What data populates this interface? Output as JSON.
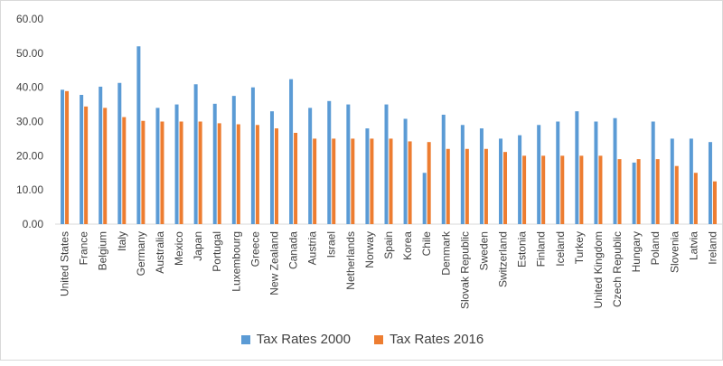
{
  "chart_data": {
    "type": "bar",
    "title": "",
    "xlabel": "",
    "ylabel": "",
    "ylim": [
      0,
      60
    ],
    "yticks": [
      "0.00",
      "10.00",
      "20.00",
      "30.00",
      "40.00",
      "50.00",
      "60.00"
    ],
    "grid": false,
    "legend_position": "bottom",
    "categories": [
      "United States",
      "France",
      "Belgium",
      "Italy",
      "Germany",
      "Australia",
      "Mexico",
      "Japan",
      "Portugal",
      "Luxembourg",
      "Greece",
      "New Zealand",
      "Canada",
      "Austria",
      "Israel",
      "Netherlands",
      "Norway",
      "Spain",
      "Korea",
      "Chile",
      "Denmark",
      "Slovak Republic",
      "Sweden",
      "Switzerland",
      "Estonia",
      "Finland",
      "Iceland",
      "Turkey",
      "United Kingdom",
      "Czech Republic",
      "Hungary",
      "Poland",
      "Slovenia",
      "Latvia",
      "Ireland"
    ],
    "series": [
      {
        "name": "Tax Rates 2000",
        "color": "#5b9bd5",
        "values": [
          39.3,
          37.8,
          40.2,
          41.3,
          52.0,
          34.0,
          35.0,
          40.9,
          35.2,
          37.5,
          40.0,
          33.0,
          42.4,
          34.0,
          36.0,
          35.0,
          28.0,
          35.0,
          30.8,
          15.0,
          32.0,
          29.0,
          28.0,
          25.0,
          26.0,
          29.0,
          30.0,
          33.0,
          30.0,
          31.0,
          18.0,
          30.0,
          25.0,
          25.0,
          24.0
        ]
      },
      {
        "name": "Tax Rates 2016",
        "color": "#ed7d31",
        "values": [
          38.9,
          34.4,
          34.0,
          31.3,
          30.2,
          30.0,
          30.0,
          30.0,
          29.5,
          29.2,
          29.0,
          28.0,
          26.7,
          25.0,
          25.0,
          25.0,
          25.0,
          25.0,
          24.2,
          24.0,
          22.0,
          22.0,
          22.0,
          21.1,
          20.0,
          20.0,
          20.0,
          20.0,
          20.0,
          19.0,
          19.0,
          19.0,
          17.0,
          15.0,
          12.5
        ]
      }
    ]
  }
}
